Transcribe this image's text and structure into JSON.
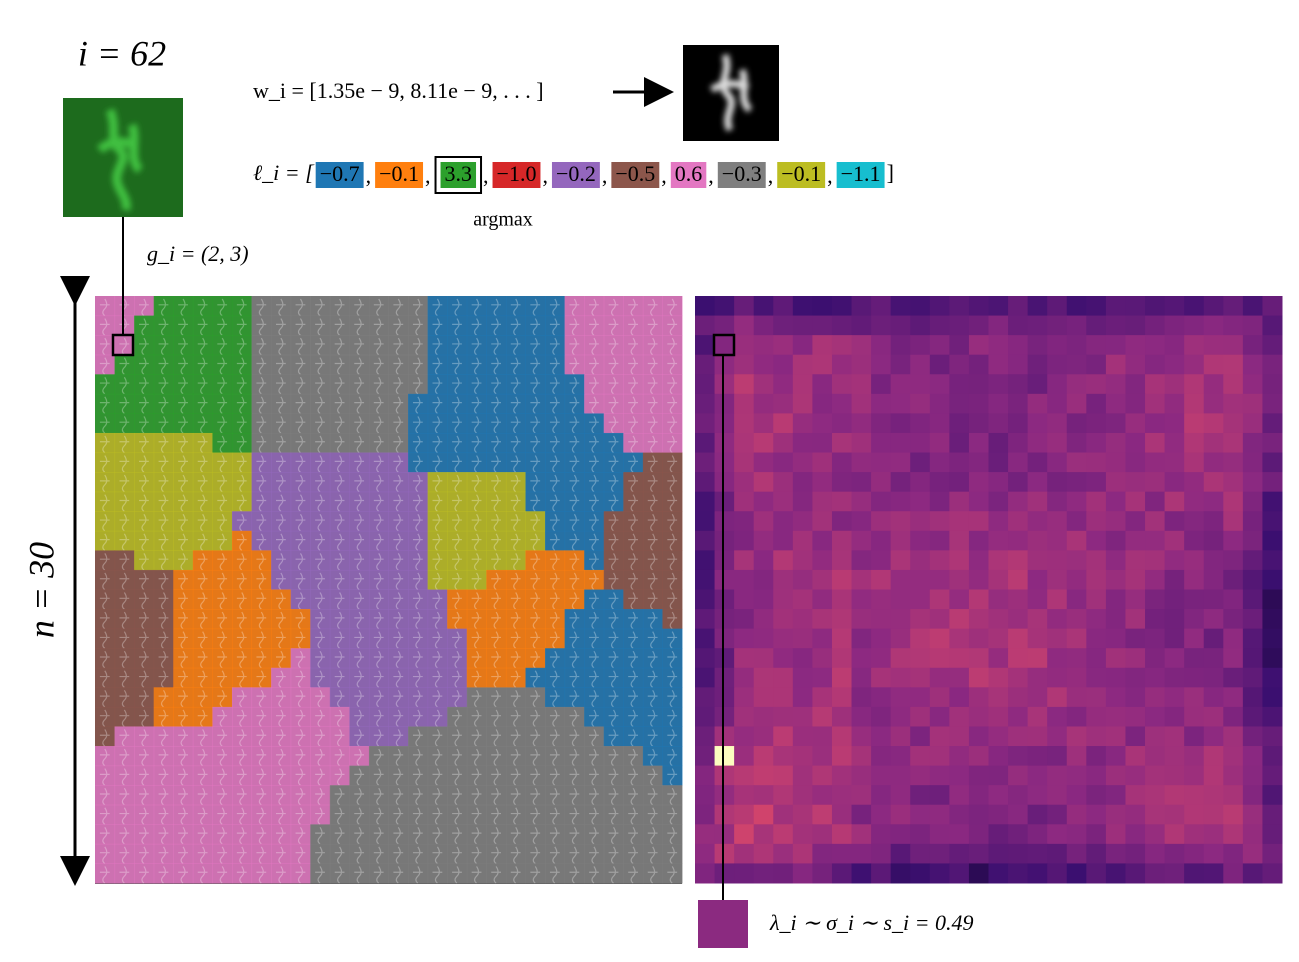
{
  "header": {
    "index": "i = 62",
    "weights": "w_i = [1.35e − 9, 8.11e − 9, . . . ]",
    "grid_position": "g_i = (2, 3)"
  },
  "logits": {
    "prefix": "ℓ_i = [",
    "suffix": "]",
    "separator": ",",
    "argmax_label": "argmax",
    "items": [
      {
        "text": "−0.7",
        "color": "#1f77b4"
      },
      {
        "text": "−0.1",
        "color": "#ff7f0e"
      },
      {
        "text": "3.3",
        "color": "#2ca02c",
        "boxed": true
      },
      {
        "text": "−1.0",
        "color": "#d62728"
      },
      {
        "text": "−0.2",
        "color": "#9467bd"
      },
      {
        "text": "−0.5",
        "color": "#8c564b"
      },
      {
        "text": "0.6",
        "color": "#e377c2"
      },
      {
        "text": "−0.3",
        "color": "#7f7f7f"
      },
      {
        "text": "−0.1",
        "color": "#bcbd22"
      },
      {
        "text": "−1.1",
        "color": "#17becf"
      }
    ]
  },
  "grid": {
    "size_label": "n = 30"
  },
  "scale": {
    "label": "λ_i ∼ σ_i ∼ s_i = 0.49",
    "color": "#8b2a80"
  }
}
